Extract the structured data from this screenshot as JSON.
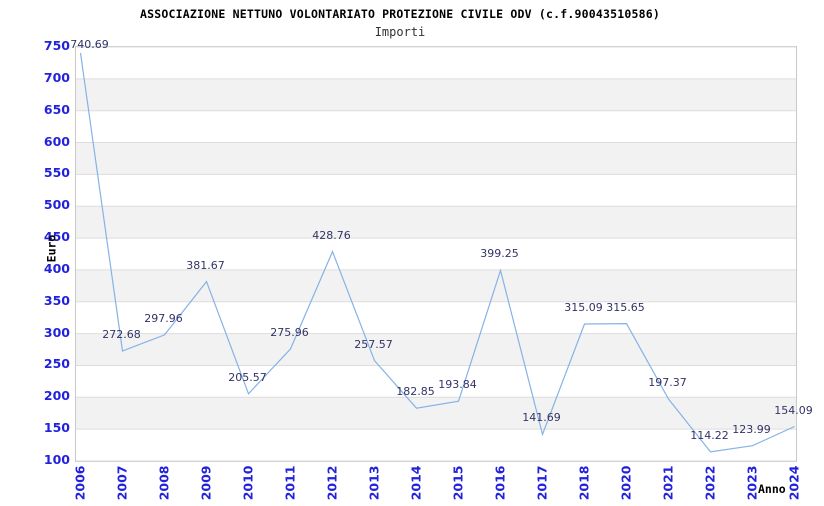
{
  "header": {
    "title": "ASSOCIAZIONE NETTUNO VOLONTARIATO PROTEZIONE CIVILE ODV (c.f.90043510586)",
    "subtitle": "Importi"
  },
  "chart_data": {
    "type": "line",
    "title": "ASSOCIAZIONE NETTUNO VOLONTARIATO PROTEZIONE CIVILE ODV (c.f.90043510586)",
    "subtitle": "Importi",
    "xlabel": "Anno",
    "ylabel": "Euro",
    "categories": [
      "2006",
      "2007",
      "2008",
      "2009",
      "2010",
      "2011",
      "2012",
      "2013",
      "2014",
      "2015",
      "2016",
      "2017",
      "2018",
      "2020",
      "2021",
      "2022",
      "2023",
      "2024"
    ],
    "values": [
      740.69,
      272.68,
      297.96,
      381.67,
      205.57,
      275.96,
      428.76,
      257.57,
      182.85,
      193.84,
      399.25,
      141.69,
      315.09,
      315.65,
      197.37,
      114.22,
      123.99,
      154.09
    ],
    "point_labels": [
      "740.69",
      "272.68",
      "297.96",
      "381.67",
      "205.57",
      "275.96",
      "428.76",
      "257.57",
      "182.85",
      "193.84",
      "399.25",
      "141.69",
      "315.09",
      "315.65",
      "197.37",
      "114.22",
      "123.99",
      "154.09"
    ],
    "ylim": [
      100,
      750
    ],
    "y_ticks": [
      750,
      700,
      650,
      600,
      550,
      500,
      450,
      400,
      350,
      300,
      250,
      200,
      150,
      100
    ],
    "grid": "horizontal",
    "legend": "none",
    "colors": {
      "line": "#85b3e6",
      "tick_label": "#2222dd",
      "point_label": "#333366",
      "gridline": "#dddddd",
      "band": "#f2f2f2",
      "plot_border": "#c9c9c9",
      "background": "#ffffff"
    }
  }
}
